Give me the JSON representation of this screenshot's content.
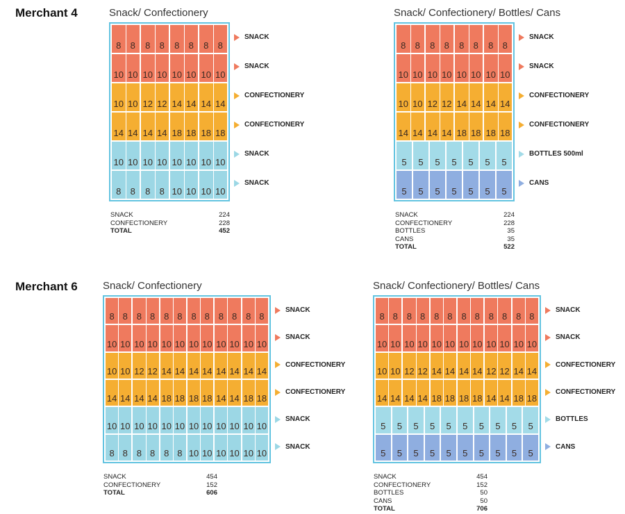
{
  "colors": {
    "snack": "#ef7a5e",
    "confectionery": "#f5ae32",
    "snack_blue": "#9cd7e5",
    "bottles": "#a3dbe8",
    "cans": "#8faee0",
    "border": "#62c3e0"
  },
  "merchants": [
    {
      "title": "Merchant 4",
      "configs": [
        {
          "title": "Snack/ Confectionery",
          "shelves": [
            {
              "type": "snack",
              "label": "SNACK",
              "slots": [
                [
                  "8",
                  "8"
                ],
                [
                  "8",
                  "8"
                ],
                [
                  "8",
                  "8"
                ],
                [
                  "8",
                  "8"
                ]
              ]
            },
            {
              "type": "snack",
              "label": "SNACK",
              "slots": [
                [
                  "10",
                  "10"
                ],
                [
                  "10",
                  "10"
                ],
                [
                  "10",
                  "10"
                ],
                [
                  "10",
                  "10"
                ]
              ]
            },
            {
              "type": "confectionery",
              "label": "CONFECTIONERY",
              "slots": [
                [
                  "10",
                  "10"
                ],
                [
                  "12",
                  "12"
                ],
                [
                  "14",
                  "14"
                ],
                [
                  "14",
                  "14"
                ]
              ]
            },
            {
              "type": "confectionery",
              "label": "CONFECTIONERY",
              "slots": [
                [
                  "14",
                  "14"
                ],
                [
                  "14",
                  "14"
                ],
                [
                  "18",
                  "18"
                ],
                [
                  "18",
                  "18"
                ]
              ]
            },
            {
              "type": "snack_blue",
              "label": "SNACK",
              "slots": [
                [
                  "10",
                  "10"
                ],
                [
                  "10",
                  "10"
                ],
                [
                  "10",
                  "10"
                ],
                [
                  "10",
                  "10"
                ]
              ]
            },
            {
              "type": "snack_blue",
              "label": "SNACK",
              "slots": [
                [
                  "8",
                  "8"
                ],
                [
                  "8",
                  "8"
                ],
                [
                  "10",
                  "10"
                ],
                [
                  "10",
                  "10"
                ]
              ]
            }
          ],
          "summary": [
            {
              "label": "SNACK",
              "value": "224"
            },
            {
              "label": "CONFECTIONERY",
              "value": "228"
            },
            {
              "label": "TOTAL",
              "value": "452",
              "bold": true
            }
          ]
        },
        {
          "title": "Snack/ Confectionery/ Bottles/ Cans",
          "shelves": [
            {
              "type": "snack",
              "label": "SNACK",
              "slots": [
                [
                  "8",
                  "8"
                ],
                [
                  "8",
                  "8"
                ],
                [
                  "8",
                  "8"
                ],
                [
                  "8",
                  "8"
                ]
              ]
            },
            {
              "type": "snack",
              "label": "SNACK",
              "slots": [
                [
                  "10",
                  "10"
                ],
                [
                  "10",
                  "10"
                ],
                [
                  "10",
                  "10"
                ],
                [
                  "10",
                  "10"
                ]
              ]
            },
            {
              "type": "confectionery",
              "label": "CONFECTIONERY",
              "slots": [
                [
                  "10",
                  "10"
                ],
                [
                  "12",
                  "12"
                ],
                [
                  "14",
                  "14"
                ],
                [
                  "14",
                  "14"
                ]
              ]
            },
            {
              "type": "confectionery",
              "label": "CONFECTIONERY",
              "slots": [
                [
                  "14",
                  "14"
                ],
                [
                  "14",
                  "14"
                ],
                [
                  "18",
                  "18"
                ],
                [
                  "18",
                  "18"
                ]
              ]
            },
            {
              "type": "bottles",
              "label": "BOTTLES 500ml",
              "slots": [
                [
                  "5"
                ],
                [
                  "5"
                ],
                [
                  "5"
                ],
                [
                  "5"
                ],
                [
                  "5"
                ],
                [
                  "5"
                ],
                [
                  "5"
                ]
              ]
            },
            {
              "type": "cans",
              "label": "CANS",
              "slots": [
                [
                  "5"
                ],
                [
                  "5"
                ],
                [
                  "5"
                ],
                [
                  "5"
                ],
                [
                  "5"
                ],
                [
                  "5"
                ],
                [
                  "5"
                ]
              ]
            }
          ],
          "summary": [
            {
              "label": "SNACK",
              "value": "224"
            },
            {
              "label": "CONFECTIONERY",
              "value": "228"
            },
            {
              "label": "BOTTLES",
              "value": "35"
            },
            {
              "label": "CANS",
              "value": "35"
            },
            {
              "label": "TOTAL",
              "value": "522",
              "bold": true
            }
          ]
        }
      ]
    },
    {
      "title": "Merchant 6",
      "configs": [
        {
          "title": "Snack/ Confectionery",
          "shelves": [
            {
              "type": "snack",
              "label": "SNACK",
              "slots": [
                [
                  "8",
                  "8"
                ],
                [
                  "8",
                  "8"
                ],
                [
                  "8",
                  "8"
                ],
                [
                  "8",
                  "8"
                ],
                [
                  "8",
                  "8"
                ],
                [
                  "8",
                  "8"
                ]
              ]
            },
            {
              "type": "snack",
              "label": "SNACK",
              "slots": [
                [
                  "10",
                  "10"
                ],
                [
                  "10",
                  "10"
                ],
                [
                  "10",
                  "10"
                ],
                [
                  "10",
                  "10"
                ],
                [
                  "10",
                  "10"
                ],
                [
                  "10",
                  "10"
                ]
              ]
            },
            {
              "type": "confectionery",
              "label": "CONFECTIONERY",
              "slots": [
                [
                  "10",
                  "10"
                ],
                [
                  "12",
                  "12"
                ],
                [
                  "14",
                  "14"
                ],
                [
                  "14",
                  "14"
                ],
                [
                  "14",
                  "14"
                ],
                [
                  "14",
                  "14"
                ]
              ]
            },
            {
              "type": "confectionery",
              "label": "CONFECTIONERY",
              "slots": [
                [
                  "14",
                  "14"
                ],
                [
                  "14",
                  "14"
                ],
                [
                  "18",
                  "18"
                ],
                [
                  "18",
                  "18"
                ],
                [
                  "14",
                  "14"
                ],
                [
                  "18",
                  "18"
                ]
              ]
            },
            {
              "type": "snack_blue",
              "label": "SNACK",
              "slots": [
                [
                  "10",
                  "10"
                ],
                [
                  "10",
                  "10"
                ],
                [
                  "10",
                  "10"
                ],
                [
                  "10",
                  "10"
                ],
                [
                  "10",
                  "10"
                ],
                [
                  "10",
                  "10"
                ]
              ]
            },
            {
              "type": "snack_blue",
              "label": "SNACK",
              "slots": [
                [
                  "8",
                  "8"
                ],
                [
                  "8",
                  "8"
                ],
                [
                  "8",
                  "8"
                ],
                [
                  "10",
                  "10"
                ],
                [
                  "10",
                  "10"
                ],
                [
                  "10",
                  "10"
                ]
              ]
            }
          ],
          "summary": [
            {
              "label": "SNACK",
              "value": "454"
            },
            {
              "label": "CONFECTIONERY",
              "value": "152"
            },
            {
              "label": "TOTAL",
              "value": "606",
              "bold": true
            }
          ]
        },
        {
          "title": "Snack/ Confectionery/ Bottles/ Cans",
          "shelves": [
            {
              "type": "snack",
              "label": "SNACK",
              "slots": [
                [
                  "8",
                  "8"
                ],
                [
                  "8",
                  "8"
                ],
                [
                  "8",
                  "8"
                ],
                [
                  "8",
                  "8"
                ],
                [
                  "8",
                  "8"
                ],
                [
                  "8",
                  "8"
                ]
              ]
            },
            {
              "type": "snack",
              "label": "SNACK",
              "slots": [
                [
                  "10",
                  "10"
                ],
                [
                  "10",
                  "10"
                ],
                [
                  "10",
                  "10"
                ],
                [
                  "10",
                  "10"
                ],
                [
                  "10",
                  "10"
                ],
                [
                  "10",
                  "10"
                ]
              ]
            },
            {
              "type": "confectionery",
              "label": "CONFECTIONERY",
              "slots": [
                [
                  "10",
                  "10"
                ],
                [
                  "12",
                  "12"
                ],
                [
                  "14",
                  "14"
                ],
                [
                  "14",
                  "14"
                ],
                [
                  "12",
                  "12"
                ],
                [
                  "14",
                  "14"
                ]
              ]
            },
            {
              "type": "confectionery",
              "label": "CONFECTIONERY",
              "slots": [
                [
                  "14",
                  "14"
                ],
                [
                  "14",
                  "14"
                ],
                [
                  "18",
                  "18"
                ],
                [
                  "18",
                  "18"
                ],
                [
                  "14",
                  "14"
                ],
                [
                  "18",
                  "18"
                ]
              ]
            },
            {
              "type": "bottles",
              "label": "BOTTLES",
              "slots": [
                [
                  "5"
                ],
                [
                  "5"
                ],
                [
                  "5"
                ],
                [
                  "5"
                ],
                [
                  "5"
                ],
                [
                  "5"
                ],
                [
                  "5"
                ],
                [
                  "5"
                ],
                [
                  "5"
                ],
                [
                  "5"
                ]
              ]
            },
            {
              "type": "cans",
              "label": "CANS",
              "slots": [
                [
                  "5"
                ],
                [
                  "5"
                ],
                [
                  "5"
                ],
                [
                  "5"
                ],
                [
                  "5"
                ],
                [
                  "5"
                ],
                [
                  "5"
                ],
                [
                  "5"
                ],
                [
                  "5"
                ],
                [
                  "5"
                ]
              ]
            }
          ],
          "summary": [
            {
              "label": "SNACK",
              "value": "454"
            },
            {
              "label": "CONFECTIONERY",
              "value": "152"
            },
            {
              "label": "BOTTLES",
              "value": "50"
            },
            {
              "label": "CANS",
              "value": "50"
            },
            {
              "label": "TOTAL",
              "value": "706",
              "bold": true
            }
          ]
        }
      ]
    }
  ]
}
